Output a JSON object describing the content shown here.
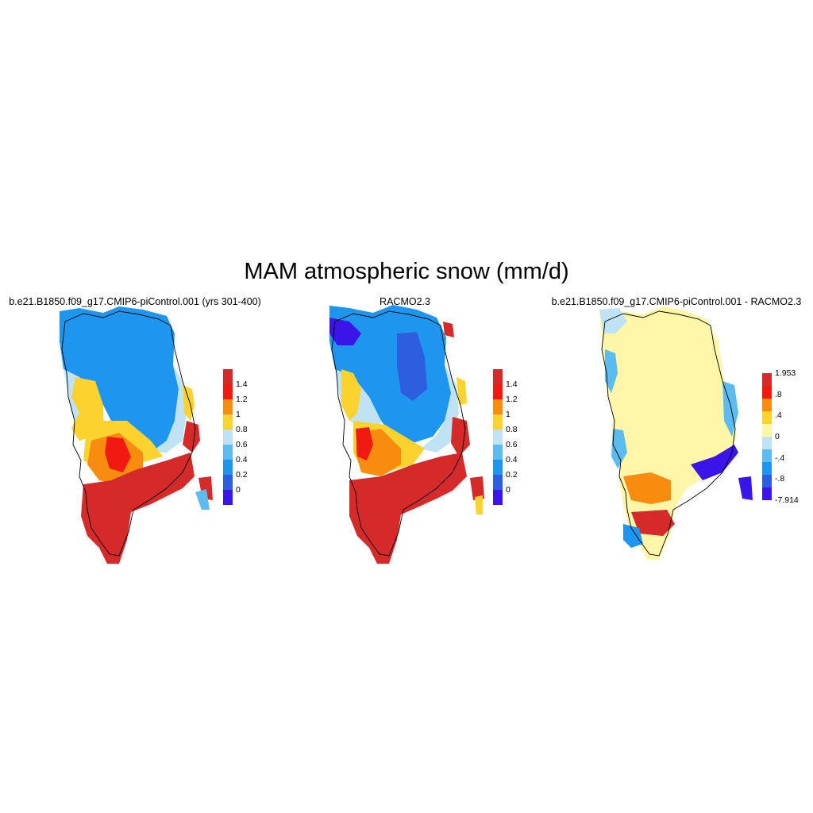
{
  "title": "MAM atmospheric snow (mm/d)",
  "panels": [
    {
      "title": "b.e21.B1850.f09_g17.CMIP6-piControl.001 (yrs 301-400)"
    },
    {
      "title": "RACMO2.3"
    },
    {
      "title": "b.e21.B1850.f09_g17.CMIP6-piControl.001 - RACMO2.3"
    }
  ],
  "colorbar_abs": {
    "colors": [
      "#3a14e8",
      "#2e5ee0",
      "#1e96f0",
      "#5cbcf0",
      "#bfe3f4",
      "#fcd22e",
      "#f88c0e",
      "#f01a10",
      "#d42a2a"
    ],
    "labels": [
      "0",
      "0.2",
      "0.4",
      "0.6",
      "0.8",
      "1",
      "1.2",
      "1.4"
    ]
  },
  "colorbar_diff": {
    "colors": [
      "#3a14e8",
      "#2e5ee0",
      "#1e96f0",
      "#5cbcf0",
      "#bfe3f4",
      "#fff6a8",
      "#fcd22e",
      "#f88c0e",
      "#f01a10",
      "#d42a2a"
    ],
    "labels": [
      "-7.914",
      "-.8",
      "-.4",
      "0",
      ".4",
      ".8",
      "1.953"
    ]
  }
}
